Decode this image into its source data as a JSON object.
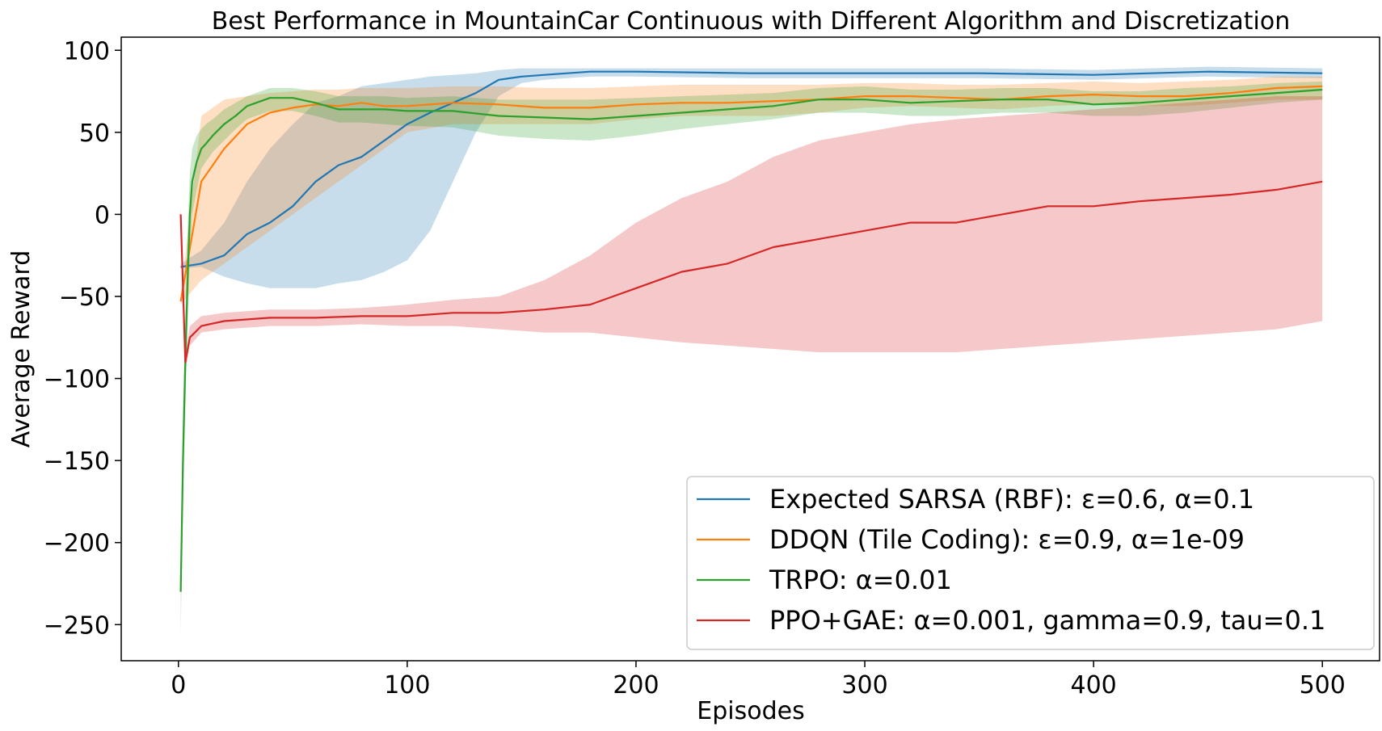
{
  "chart_data": {
    "type": "line",
    "title": "Best Performance in MountainCar Continuous with Different Algorithm and Discretization",
    "xlabel": "Episodes",
    "ylabel": "Average Reward",
    "xlim": [
      -25,
      525
    ],
    "ylim": [
      -272,
      108
    ],
    "xticks": [
      0,
      100,
      200,
      300,
      400,
      500
    ],
    "yticks": [
      100,
      50,
      0,
      -50,
      -100,
      -150,
      -200,
      -250
    ],
    "xtick_labels": [
      "0",
      "100",
      "200",
      "300",
      "400",
      "500"
    ],
    "ytick_labels": [
      "100",
      "50",
      "0",
      "−50",
      "−100",
      "−150",
      "−200",
      "−250"
    ],
    "grid": false,
    "legend_position": "lower-right",
    "series": [
      {
        "name": "Expected SARSA (RBF): ε=0.6, α=0.1",
        "color": "#1f77b4",
        "band_color": "#1f77b4",
        "x": [
          1,
          10,
          20,
          30,
          40,
          50,
          60,
          70,
          80,
          90,
          100,
          110,
          120,
          130,
          140,
          150,
          160,
          170,
          180,
          200,
          250,
          300,
          350,
          400,
          450,
          500
        ],
        "y": [
          -32,
          -30,
          -25,
          -12,
          -5,
          5,
          20,
          30,
          35,
          45,
          55,
          62,
          68,
          74,
          82,
          84,
          85,
          86,
          87,
          87,
          86,
          86,
          86,
          85,
          87,
          86
        ],
        "band": [
          [
            -33,
            -30
          ],
          [
            -32,
            -22
          ],
          [
            -38,
            -5
          ],
          [
            -42,
            20
          ],
          [
            -45,
            40
          ],
          [
            -45,
            55
          ],
          [
            -45,
            68
          ],
          [
            -42,
            72
          ],
          [
            -40,
            78
          ],
          [
            -35,
            80
          ],
          [
            -28,
            82
          ],
          [
            -10,
            84
          ],
          [
            20,
            85
          ],
          [
            50,
            86
          ],
          [
            72,
            88
          ],
          [
            80,
            89
          ],
          [
            82,
            89
          ],
          [
            83,
            89
          ],
          [
            84,
            89
          ],
          [
            84,
            89
          ],
          [
            83,
            89
          ],
          [
            83,
            89
          ],
          [
            83,
            89
          ],
          [
            82,
            88
          ],
          [
            84,
            90
          ],
          [
            83,
            89
          ]
        ]
      },
      {
        "name": "DDQN (Tile Coding): ε=0.9, α=1e-09",
        "color": "#ff7f0e",
        "band_color": "#ff7f0e",
        "x": [
          1,
          10,
          20,
          30,
          40,
          50,
          60,
          70,
          80,
          90,
          100,
          120,
          140,
          160,
          180,
          200,
          220,
          240,
          260,
          280,
          300,
          320,
          340,
          360,
          380,
          400,
          420,
          440,
          460,
          480,
          500
        ],
        "y": [
          -53,
          20,
          40,
          55,
          62,
          65,
          67,
          66,
          68,
          66,
          66,
          68,
          67,
          65,
          65,
          67,
          68,
          68,
          69,
          70,
          72,
          72,
          71,
          70,
          72,
          73,
          72,
          72,
          74,
          77,
          78
        ],
        "band": [
          [
            -55,
            -50
          ],
          [
            -40,
            60
          ],
          [
            -30,
            70
          ],
          [
            -20,
            72
          ],
          [
            -10,
            74
          ],
          [
            0,
            75
          ],
          [
            10,
            76
          ],
          [
            20,
            76
          ],
          [
            30,
            77
          ],
          [
            40,
            77
          ],
          [
            50,
            77
          ],
          [
            55,
            78
          ],
          [
            55,
            78
          ],
          [
            55,
            77
          ],
          [
            55,
            77
          ],
          [
            58,
            78
          ],
          [
            60,
            79
          ],
          [
            60,
            79
          ],
          [
            60,
            79
          ],
          [
            62,
            79
          ],
          [
            65,
            80
          ],
          [
            66,
            80
          ],
          [
            65,
            79
          ],
          [
            64,
            79
          ],
          [
            66,
            80
          ],
          [
            67,
            81
          ],
          [
            66,
            80
          ],
          [
            66,
            81
          ],
          [
            68,
            82
          ],
          [
            70,
            84
          ],
          [
            70,
            84
          ]
        ]
      },
      {
        "name": "TRPO: α=0.01",
        "color": "#2ca02c",
        "band_color": "#2ca02c",
        "x": [
          1,
          2,
          3,
          4,
          5,
          6,
          8,
          10,
          12,
          15,
          20,
          25,
          30,
          40,
          50,
          60,
          70,
          80,
          90,
          100,
          120,
          140,
          160,
          180,
          200,
          220,
          240,
          260,
          280,
          300,
          320,
          340,
          360,
          380,
          400,
          420,
          440,
          460,
          480,
          500
        ],
        "y": [
          -230,
          -150,
          -90,
          -40,
          0,
          20,
          32,
          40,
          43,
          48,
          55,
          60,
          66,
          71,
          71,
          68,
          64,
          64,
          64,
          63,
          63,
          60,
          59,
          58,
          60,
          62,
          64,
          66,
          70,
          70,
          68,
          69,
          70,
          70,
          67,
          68,
          70,
          72,
          74,
          76
        ],
        "band": [
          [
            -255,
            -205
          ],
          [
            -180,
            -120
          ],
          [
            -120,
            -60
          ],
          [
            -70,
            -10
          ],
          [
            -25,
            25
          ],
          [
            0,
            40
          ],
          [
            15,
            48
          ],
          [
            28,
            52
          ],
          [
            32,
            55
          ],
          [
            38,
            58
          ],
          [
            45,
            64
          ],
          [
            52,
            68
          ],
          [
            58,
            72
          ],
          [
            63,
            77
          ],
          [
            63,
            77
          ],
          [
            60,
            75
          ],
          [
            56,
            72
          ],
          [
            56,
            72
          ],
          [
            55,
            72
          ],
          [
            54,
            71
          ],
          [
            53,
            72
          ],
          [
            48,
            70
          ],
          [
            46,
            70
          ],
          [
            45,
            70
          ],
          [
            48,
            71
          ],
          [
            52,
            72
          ],
          [
            55,
            73
          ],
          [
            58,
            74
          ],
          [
            62,
            77
          ],
          [
            62,
            78
          ],
          [
            60,
            76
          ],
          [
            60,
            76
          ],
          [
            62,
            77
          ],
          [
            62,
            77
          ],
          [
            60,
            75
          ],
          [
            60,
            75
          ],
          [
            62,
            77
          ],
          [
            65,
            78
          ],
          [
            68,
            80
          ],
          [
            70,
            81
          ]
        ]
      },
      {
        "name": "PPO+GAE: α=0.001, gamma=0.9, tau=0.1",
        "color": "#d62728",
        "band_color": "#d62728",
        "x": [
          1,
          3,
          5,
          10,
          20,
          40,
          60,
          80,
          100,
          120,
          140,
          160,
          180,
          200,
          220,
          240,
          260,
          280,
          300,
          320,
          340,
          360,
          380,
          400,
          420,
          440,
          460,
          480,
          500
        ],
        "y": [
          0,
          -90,
          -75,
          -68,
          -65,
          -63,
          -63,
          -62,
          -62,
          -60,
          -60,
          -58,
          -55,
          -45,
          -35,
          -30,
          -20,
          -15,
          -10,
          -5,
          -5,
          0,
          5,
          5,
          8,
          10,
          12,
          15,
          20
        ],
        "band": [
          [
            -5,
            5
          ],
          [
            -95,
            -85
          ],
          [
            -80,
            -68
          ],
          [
            -72,
            -62
          ],
          [
            -70,
            -60
          ],
          [
            -68,
            -58
          ],
          [
            -68,
            -58
          ],
          [
            -67,
            -57
          ],
          [
            -68,
            -55
          ],
          [
            -68,
            -52
          ],
          [
            -70,
            -50
          ],
          [
            -72,
            -40
          ],
          [
            -72,
            -25
          ],
          [
            -75,
            -5
          ],
          [
            -78,
            10
          ],
          [
            -80,
            20
          ],
          [
            -82,
            35
          ],
          [
            -84,
            45
          ],
          [
            -84,
            50
          ],
          [
            -84,
            55
          ],
          [
            -84,
            58
          ],
          [
            -82,
            60
          ],
          [
            -80,
            62
          ],
          [
            -78,
            64
          ],
          [
            -76,
            66
          ],
          [
            -74,
            68
          ],
          [
            -72,
            70
          ],
          [
            -70,
            72
          ],
          [
            -65,
            72
          ]
        ]
      }
    ]
  }
}
